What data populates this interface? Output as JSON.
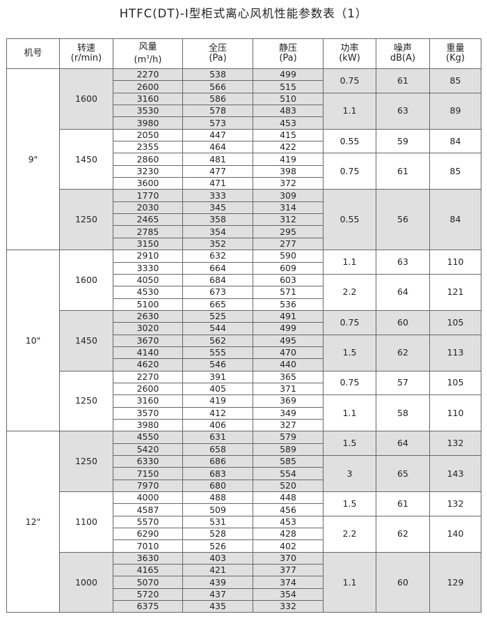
{
  "title": "HTFC(DT)-Ⅰ型柜式离心风机性能参数表（1）",
  "headers": {
    "model": "机号",
    "speed": [
      "转速",
      "(r/min)"
    ],
    "flow": [
      "风量",
      "(m",
      "3",
      "/h)"
    ],
    "total_pressure": [
      "全压",
      "(Pa)"
    ],
    "static_pressure": [
      "静压",
      "(Pa)"
    ],
    "power": [
      "功率",
      "(kW)"
    ],
    "noise": [
      "噪声",
      "dB(A)"
    ],
    "weight": [
      "重量",
      "(Kg)"
    ]
  },
  "colors": {
    "shaded": "#e0e0e0",
    "border": "#666666"
  },
  "models": [
    {
      "model": "9\"",
      "speeds": [
        {
          "speed": "1600",
          "shaded": true,
          "rows": [
            [
              "2270",
              "538",
              "499"
            ],
            [
              "2600",
              "566",
              "515"
            ],
            [
              "3160",
              "586",
              "510"
            ],
            [
              "3530",
              "578",
              "483"
            ],
            [
              "3980",
              "573",
              "453"
            ]
          ],
          "motors": [
            {
              "span": 2,
              "power": "0.75",
              "noise": "61",
              "weight": "85"
            },
            {
              "span": 3,
              "power": "1.1",
              "noise": "63",
              "weight": "89"
            }
          ]
        },
        {
          "speed": "1450",
          "shaded": false,
          "rows": [
            [
              "2050",
              "447",
              "415"
            ],
            [
              "2355",
              "464",
              "422"
            ],
            [
              "2860",
              "481",
              "419"
            ],
            [
              "3230",
              "477",
              "398"
            ],
            [
              "3600",
              "471",
              "372"
            ]
          ],
          "motors": [
            {
              "span": 2,
              "power": "0.55",
              "noise": "59",
              "weight": "84"
            },
            {
              "span": 3,
              "power": "0.75",
              "noise": "61",
              "weight": "85"
            }
          ]
        },
        {
          "speed": "1250",
          "shaded": true,
          "rows": [
            [
              "1770",
              "333",
              "309"
            ],
            [
              "2030",
              "345",
              "314"
            ],
            [
              "2465",
              "358",
              "312"
            ],
            [
              "2785",
              "354",
              "295"
            ],
            [
              "3150",
              "352",
              "277"
            ]
          ],
          "motors": [
            {
              "span": 5,
              "power": "0.55",
              "noise": "56",
              "weight": "84"
            }
          ]
        }
      ]
    },
    {
      "model": "10\"",
      "speeds": [
        {
          "speed": "1600",
          "shaded": false,
          "rows": [
            [
              "2910",
              "632",
              "590"
            ],
            [
              "3330",
              "664",
              "609"
            ],
            [
              "4050",
              "684",
              "603"
            ],
            [
              "4530",
              "673",
              "571"
            ],
            [
              "5100",
              "665",
              "536"
            ]
          ],
          "motors": [
            {
              "span": 2,
              "power": "1.1",
              "noise": "63",
              "weight": "110"
            },
            {
              "span": 3,
              "power": "2.2",
              "noise": "64",
              "weight": "121"
            }
          ]
        },
        {
          "speed": "1450",
          "shaded": true,
          "rows": [
            [
              "2630",
              "525",
              "491"
            ],
            [
              "3020",
              "544",
              "499"
            ],
            [
              "3670",
              "562",
              "495"
            ],
            [
              "4140",
              "555",
              "470"
            ],
            [
              "4620",
              "546",
              "440"
            ]
          ],
          "motors": [
            {
              "span": 2,
              "power": "0.75",
              "noise": "60",
              "weight": "105"
            },
            {
              "span": 3,
              "power": "1.5",
              "noise": "62",
              "weight": "113"
            }
          ]
        },
        {
          "speed": "1250",
          "shaded": false,
          "rows": [
            [
              "2270",
              "391",
              "365"
            ],
            [
              "2600",
              "405",
              "371"
            ],
            [
              "3160",
              "419",
              "369"
            ],
            [
              "3570",
              "412",
              "349"
            ],
            [
              "3980",
              "406",
              "327"
            ]
          ],
          "motors": [
            {
              "span": 2,
              "power": "0.75",
              "noise": "57",
              "weight": "105"
            },
            {
              "span": 3,
              "power": "1.1",
              "noise": "58",
              "weight": "110"
            }
          ]
        }
      ]
    },
    {
      "model": "12\"",
      "speeds": [
        {
          "speed": "1250",
          "shaded": true,
          "rows": [
            [
              "4550",
              "631",
              "579"
            ],
            [
              "5420",
              "658",
              "589"
            ],
            [
              "6330",
              "686",
              "585"
            ],
            [
              "7150",
              "683",
              "554"
            ],
            [
              "7970",
              "680",
              "520"
            ]
          ],
          "motors": [
            {
              "span": 2,
              "power": "1.5",
              "noise": "64",
              "weight": "132"
            },
            {
              "span": 3,
              "power": "3",
              "noise": "65",
              "weight": "143"
            }
          ]
        },
        {
          "speed": "1100",
          "shaded": false,
          "rows": [
            [
              "4000",
              "488",
              "448"
            ],
            [
              "4587",
              "509",
              "456"
            ],
            [
              "5570",
              "531",
              "453"
            ],
            [
              "6290",
              "528",
              "428"
            ],
            [
              "7010",
              "526",
              "402"
            ]
          ],
          "motors": [
            {
              "span": 2,
              "power": "1.5",
              "noise": "61",
              "weight": "132"
            },
            {
              "span": 3,
              "power": "2.2",
              "noise": "62",
              "weight": "140"
            }
          ]
        },
        {
          "speed": "1000",
          "shaded": true,
          "rows": [
            [
              "3630",
              "403",
              "370"
            ],
            [
              "4165",
              "421",
              "377"
            ],
            [
              "5070",
              "439",
              "374"
            ],
            [
              "5720",
              "437",
              "354"
            ],
            [
              "6375",
              "435",
              "332"
            ]
          ],
          "motors": [
            {
              "span": 5,
              "power": "1.1",
              "noise": "60",
              "weight": "129"
            }
          ]
        }
      ]
    }
  ]
}
